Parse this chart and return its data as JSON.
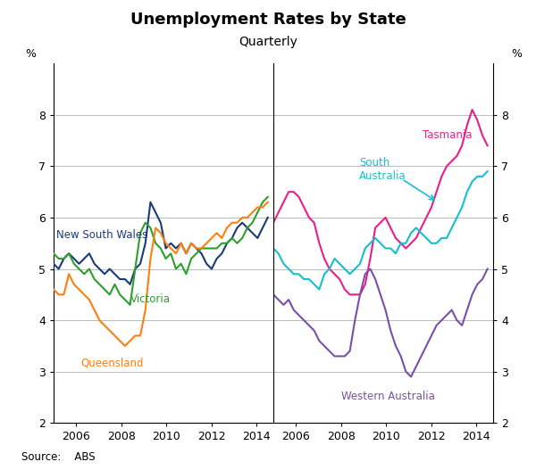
{
  "title": "Unemployment Rates by State",
  "subtitle": "Quarterly",
  "source": "Source:    ABS",
  "ylim": [
    2,
    9
  ],
  "yticks": [
    2,
    3,
    4,
    5,
    6,
    7,
    8
  ],
  "ylabel": "%",
  "bg_color": "#ffffff",
  "grid_color": "#bbbbbb",
  "left_panel": {
    "series": {
      "nsw": {
        "label": "New South Wales",
        "color": "#1a3a7a",
        "data": [
          5.1,
          5.0,
          5.2,
          5.3,
          5.2,
          5.1,
          5.2,
          5.3,
          5.1,
          5.0,
          4.9,
          5.0,
          4.9,
          4.8,
          4.8,
          4.7,
          5.0,
          5.1,
          5.5,
          6.3,
          6.1,
          5.9,
          5.4,
          5.5,
          5.4,
          5.5,
          5.3,
          5.5,
          5.4,
          5.3,
          5.1,
          5.0,
          5.2,
          5.3,
          5.5,
          5.6,
          5.8,
          5.9,
          5.8,
          5.7,
          5.6,
          5.8,
          6.0
        ]
      },
      "vic": {
        "label": "Victoria",
        "color": "#2ca02c",
        "data": [
          5.3,
          5.2,
          5.2,
          5.3,
          5.1,
          5.0,
          4.9,
          5.0,
          4.8,
          4.7,
          4.6,
          4.5,
          4.7,
          4.5,
          4.4,
          4.3,
          5.0,
          5.7,
          5.9,
          5.8,
          5.5,
          5.4,
          5.2,
          5.3,
          5.0,
          5.1,
          4.9,
          5.2,
          5.3,
          5.4,
          5.4,
          5.4,
          5.4,
          5.5,
          5.5,
          5.6,
          5.5,
          5.6,
          5.8,
          5.9,
          6.1,
          6.3,
          6.4
        ]
      },
      "qld": {
        "label": "Queensland",
        "color": "#ff7f0e",
        "data": [
          4.6,
          4.5,
          4.5,
          4.9,
          4.7,
          4.6,
          4.5,
          4.4,
          4.2,
          4.0,
          3.9,
          3.8,
          3.7,
          3.6,
          3.5,
          3.6,
          3.7,
          3.7,
          4.2,
          5.2,
          5.8,
          5.7,
          5.5,
          5.4,
          5.3,
          5.5,
          5.3,
          5.5,
          5.4,
          5.4,
          5.5,
          5.6,
          5.7,
          5.6,
          5.8,
          5.9,
          5.9,
          6.0,
          6.0,
          6.1,
          6.2,
          6.2,
          6.3
        ]
      }
    }
  },
  "right_panel": {
    "series": {
      "tas": {
        "label": "Tasmania",
        "color": "#e91e8c",
        "data": [
          5.9,
          6.1,
          6.3,
          6.5,
          6.5,
          6.4,
          6.2,
          6.0,
          5.9,
          5.5,
          5.2,
          5.0,
          4.9,
          4.8,
          4.6,
          4.5,
          4.5,
          4.5,
          4.7,
          5.2,
          5.8,
          5.9,
          6.0,
          5.8,
          5.6,
          5.5,
          5.4,
          5.5,
          5.6,
          5.8,
          6.0,
          6.2,
          6.5,
          6.8,
          7.0,
          7.1,
          7.2,
          7.4,
          7.8,
          8.1,
          7.9,
          7.6,
          7.4
        ]
      },
      "sa": {
        "label": "South Australia",
        "color": "#17becf",
        "data": [
          5.4,
          5.3,
          5.1,
          5.0,
          4.9,
          4.9,
          4.8,
          4.8,
          4.7,
          4.6,
          4.9,
          5.0,
          5.2,
          5.1,
          5.0,
          4.9,
          5.0,
          5.1,
          5.4,
          5.5,
          5.6,
          5.5,
          5.4,
          5.4,
          5.3,
          5.5,
          5.5,
          5.7,
          5.8,
          5.7,
          5.6,
          5.5,
          5.5,
          5.6,
          5.6,
          5.8,
          6.0,
          6.2,
          6.5,
          6.7,
          6.8,
          6.8,
          6.9
        ]
      },
      "wa": {
        "label": "Western Australia",
        "color": "#7b4fa8",
        "data": [
          4.5,
          4.4,
          4.3,
          4.4,
          4.2,
          4.1,
          4.0,
          3.9,
          3.8,
          3.6,
          3.5,
          3.4,
          3.3,
          3.3,
          3.3,
          3.4,
          4.0,
          4.5,
          4.9,
          5.0,
          4.8,
          4.5,
          4.2,
          3.8,
          3.5,
          3.3,
          3.0,
          2.9,
          3.1,
          3.3,
          3.5,
          3.7,
          3.9,
          4.0,
          4.1,
          4.2,
          4.0,
          3.9,
          4.2,
          4.5,
          4.7,
          4.8,
          5.0
        ]
      }
    }
  }
}
